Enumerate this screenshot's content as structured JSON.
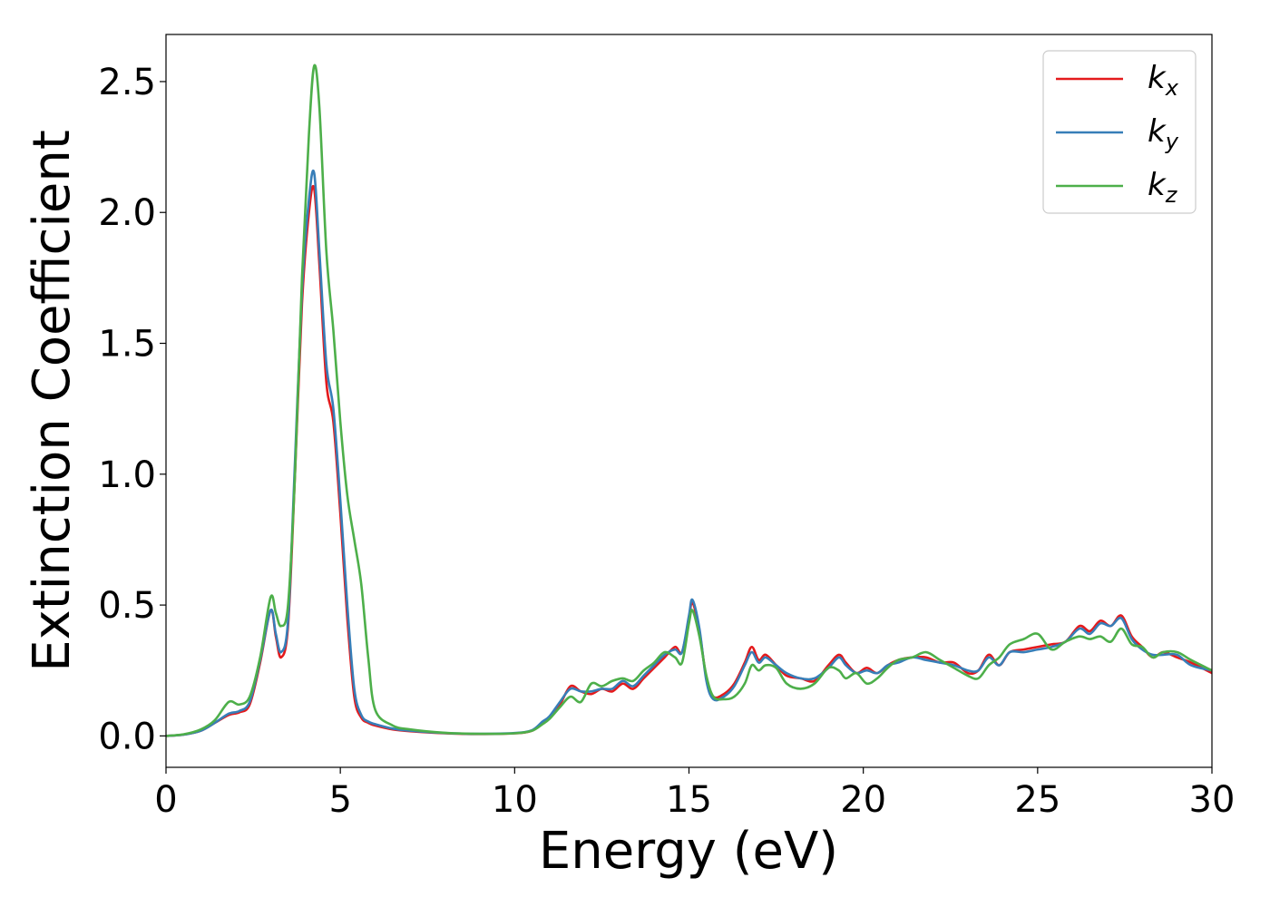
{
  "chart_data": {
    "type": "line",
    "title": "",
    "xlabel": "Energy (eV)",
    "ylabel": "Extinction Coefficient",
    "xlim": [
      0,
      30
    ],
    "ylim": [
      -0.12,
      2.68
    ],
    "xticks": [
      0,
      5,
      10,
      15,
      20,
      25,
      30
    ],
    "xtick_labels": [
      "0",
      "5",
      "10",
      "15",
      "20",
      "25",
      "30"
    ],
    "yticks": [
      0.0,
      0.5,
      1.0,
      1.5,
      2.0,
      2.5
    ],
    "ytick_labels": [
      "0.0",
      "0.5",
      "1.0",
      "1.5",
      "2.0",
      "2.5"
    ],
    "grid": false,
    "legend_position": "top-right",
    "series": [
      {
        "name": "k",
        "subscript": "x",
        "color": "#e41a1c",
        "x": [
          0,
          0.5,
          1.0,
          1.4,
          1.8,
          2.1,
          2.4,
          2.7,
          3.0,
          3.15,
          3.3,
          3.5,
          3.7,
          3.9,
          4.1,
          4.25,
          4.4,
          4.6,
          4.8,
          5.0,
          5.2,
          5.4,
          5.6,
          5.8,
          6.0,
          6.5,
          7.0,
          8.0,
          9.0,
          10.0,
          10.5,
          10.8,
          11.0,
          11.3,
          11.6,
          11.9,
          12.2,
          12.5,
          12.8,
          13.1,
          13.4,
          13.7,
          14.0,
          14.3,
          14.6,
          14.8,
          15.0,
          15.1,
          15.3,
          15.5,
          15.7,
          16.0,
          16.3,
          16.6,
          16.8,
          17.0,
          17.2,
          17.5,
          17.8,
          18.2,
          18.6,
          19.0,
          19.3,
          19.5,
          19.8,
          20.1,
          20.4,
          20.7,
          21.0,
          21.4,
          21.8,
          22.2,
          22.6,
          23.0,
          23.3,
          23.6,
          23.9,
          24.2,
          24.6,
          25.0,
          25.4,
          25.8,
          26.2,
          26.5,
          26.8,
          27.1,
          27.4,
          27.7,
          28.0,
          28.3,
          28.6,
          29.0,
          29.4,
          30.0
        ],
        "y": [
          0.0,
          0.005,
          0.02,
          0.05,
          0.08,
          0.09,
          0.12,
          0.28,
          0.48,
          0.38,
          0.3,
          0.42,
          1.0,
          1.65,
          2.0,
          2.09,
          1.8,
          1.35,
          1.2,
          0.85,
          0.45,
          0.15,
          0.07,
          0.05,
          0.04,
          0.025,
          0.018,
          0.01,
          0.007,
          0.01,
          0.02,
          0.05,
          0.07,
          0.12,
          0.19,
          0.17,
          0.16,
          0.18,
          0.17,
          0.2,
          0.18,
          0.22,
          0.26,
          0.3,
          0.34,
          0.32,
          0.45,
          0.51,
          0.4,
          0.22,
          0.15,
          0.16,
          0.2,
          0.28,
          0.34,
          0.29,
          0.31,
          0.27,
          0.23,
          0.22,
          0.21,
          0.27,
          0.31,
          0.28,
          0.24,
          0.26,
          0.24,
          0.27,
          0.29,
          0.3,
          0.3,
          0.28,
          0.28,
          0.24,
          0.25,
          0.31,
          0.27,
          0.32,
          0.33,
          0.34,
          0.35,
          0.36,
          0.42,
          0.4,
          0.44,
          0.42,
          0.46,
          0.38,
          0.34,
          0.3,
          0.32,
          0.3,
          0.28,
          0.24
        ]
      },
      {
        "name": "k",
        "subscript": "y",
        "color": "#377eb8",
        "x": [
          0,
          0.5,
          1.0,
          1.4,
          1.8,
          2.1,
          2.4,
          2.7,
          3.0,
          3.15,
          3.3,
          3.5,
          3.7,
          3.9,
          4.1,
          4.25,
          4.4,
          4.6,
          4.8,
          5.0,
          5.2,
          5.4,
          5.6,
          5.8,
          6.0,
          6.5,
          7.0,
          8.0,
          9.0,
          10.0,
          10.5,
          10.8,
          11.0,
          11.3,
          11.6,
          11.9,
          12.2,
          12.5,
          12.8,
          13.1,
          13.4,
          13.7,
          14.0,
          14.3,
          14.6,
          14.8,
          15.0,
          15.1,
          15.3,
          15.5,
          15.7,
          16.0,
          16.3,
          16.6,
          16.8,
          17.0,
          17.2,
          17.5,
          17.8,
          18.2,
          18.6,
          19.0,
          19.3,
          19.5,
          19.8,
          20.1,
          20.4,
          20.7,
          21.0,
          21.4,
          21.8,
          22.2,
          22.6,
          23.0,
          23.3,
          23.6,
          23.9,
          24.2,
          24.6,
          25.0,
          25.4,
          25.8,
          26.2,
          26.5,
          26.8,
          27.1,
          27.4,
          27.7,
          28.0,
          28.3,
          28.6,
          29.0,
          29.4,
          30.0
        ],
        "y": [
          0.0,
          0.005,
          0.02,
          0.05,
          0.085,
          0.095,
          0.13,
          0.29,
          0.48,
          0.39,
          0.32,
          0.44,
          1.05,
          1.7,
          2.05,
          2.15,
          1.85,
          1.42,
          1.25,
          0.9,
          0.5,
          0.18,
          0.08,
          0.055,
          0.045,
          0.028,
          0.02,
          0.011,
          0.008,
          0.011,
          0.022,
          0.055,
          0.075,
          0.13,
          0.18,
          0.17,
          0.17,
          0.18,
          0.18,
          0.21,
          0.19,
          0.23,
          0.27,
          0.31,
          0.33,
          0.32,
          0.46,
          0.52,
          0.41,
          0.21,
          0.14,
          0.15,
          0.19,
          0.27,
          0.32,
          0.28,
          0.3,
          0.27,
          0.24,
          0.22,
          0.22,
          0.26,
          0.3,
          0.27,
          0.24,
          0.25,
          0.24,
          0.27,
          0.28,
          0.3,
          0.29,
          0.28,
          0.27,
          0.25,
          0.25,
          0.3,
          0.27,
          0.32,
          0.32,
          0.33,
          0.34,
          0.36,
          0.41,
          0.39,
          0.43,
          0.42,
          0.45,
          0.37,
          0.33,
          0.31,
          0.31,
          0.31,
          0.27,
          0.25
        ]
      },
      {
        "name": "k",
        "subscript": "z",
        "color": "#4daf4a",
        "x": [
          0,
          0.5,
          1.0,
          1.4,
          1.8,
          2.1,
          2.4,
          2.7,
          3.0,
          3.15,
          3.3,
          3.5,
          3.7,
          3.9,
          4.1,
          4.25,
          4.4,
          4.6,
          4.8,
          5.0,
          5.2,
          5.4,
          5.6,
          5.8,
          6.0,
          6.5,
          7.0,
          8.0,
          9.0,
          10.0,
          10.5,
          10.8,
          11.0,
          11.3,
          11.6,
          11.9,
          12.2,
          12.5,
          12.8,
          13.1,
          13.4,
          13.7,
          14.0,
          14.3,
          14.6,
          14.8,
          15.0,
          15.1,
          15.3,
          15.5,
          15.7,
          16.0,
          16.3,
          16.6,
          16.8,
          17.0,
          17.2,
          17.5,
          17.8,
          18.2,
          18.6,
          19.0,
          19.3,
          19.5,
          19.8,
          20.1,
          20.4,
          20.7,
          21.0,
          21.4,
          21.8,
          22.2,
          22.6,
          23.0,
          23.3,
          23.6,
          23.9,
          24.2,
          24.6,
          25.0,
          25.4,
          25.8,
          26.2,
          26.5,
          26.8,
          27.1,
          27.4,
          27.7,
          28.0,
          28.3,
          28.6,
          29.0,
          29.4,
          30.0
        ],
        "y": [
          0.0,
          0.006,
          0.025,
          0.06,
          0.13,
          0.12,
          0.15,
          0.3,
          0.53,
          0.47,
          0.42,
          0.5,
          1.0,
          1.75,
          2.3,
          2.56,
          2.4,
          1.85,
          1.55,
          1.2,
          0.92,
          0.75,
          0.58,
          0.3,
          0.1,
          0.04,
          0.025,
          0.012,
          0.008,
          0.01,
          0.02,
          0.045,
          0.065,
          0.11,
          0.15,
          0.13,
          0.2,
          0.19,
          0.21,
          0.22,
          0.21,
          0.25,
          0.28,
          0.32,
          0.3,
          0.28,
          0.43,
          0.48,
          0.38,
          0.23,
          0.15,
          0.14,
          0.15,
          0.2,
          0.27,
          0.25,
          0.27,
          0.26,
          0.2,
          0.18,
          0.2,
          0.26,
          0.25,
          0.22,
          0.24,
          0.2,
          0.22,
          0.26,
          0.29,
          0.3,
          0.32,
          0.29,
          0.26,
          0.23,
          0.22,
          0.27,
          0.3,
          0.35,
          0.37,
          0.39,
          0.33,
          0.36,
          0.38,
          0.37,
          0.38,
          0.36,
          0.41,
          0.35,
          0.34,
          0.3,
          0.32,
          0.32,
          0.29,
          0.25
        ]
      }
    ]
  }
}
